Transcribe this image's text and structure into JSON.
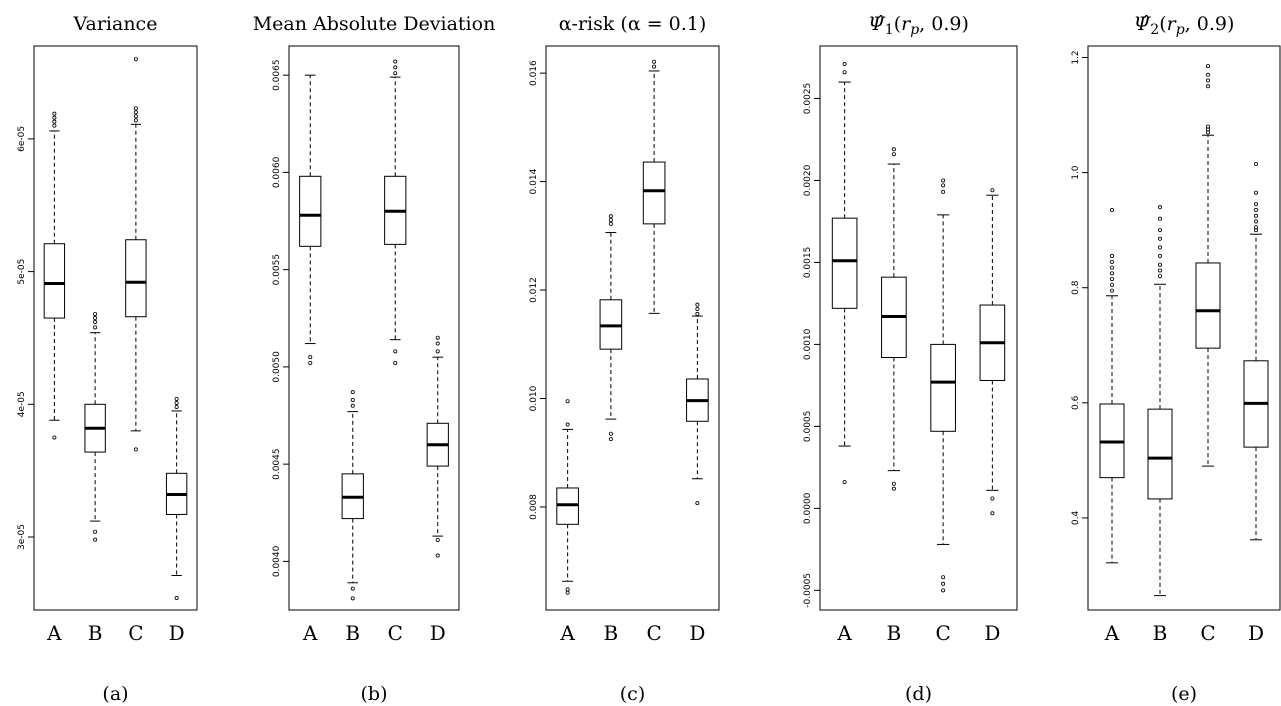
{
  "chart_data": [
    {
      "type": "boxplot",
      "title": "Variance",
      "caption": "(a)",
      "categories": [
        "A",
        "B",
        "C",
        "D"
      ],
      "ylim": [
        2.45e-05,
        6.7e-05
      ],
      "yticks": [
        3e-05,
        4e-05,
        5e-05,
        6e-05
      ],
      "ytick_labels": [
        "3e-05",
        "4e-05",
        "5e-05",
        "6e-05"
      ],
      "boxes": [
        {
          "lower_whisker": 3.88e-05,
          "q1": 4.65e-05,
          "median": 4.91e-05,
          "q3": 5.21e-05,
          "upper_whisker": 6.06e-05,
          "outliers": [
            3.75e-05,
            6.1e-05,
            6.13e-05,
            6.16e-05,
            6.19e-05
          ]
        },
        {
          "lower_whisker": 3.12e-05,
          "q1": 3.64e-05,
          "median": 3.82e-05,
          "q3": 4e-05,
          "upper_whisker": 4.54e-05,
          "outliers": [
            3.04e-05,
            2.98e-05,
            4.58e-05,
            4.62e-05,
            4.65e-05,
            4.68e-05
          ]
        },
        {
          "lower_whisker": 3.8e-05,
          "q1": 4.66e-05,
          "median": 4.92e-05,
          "q3": 5.24e-05,
          "upper_whisker": 6.11e-05,
          "outliers": [
            3.66e-05,
            6.14e-05,
            6.17e-05,
            6.2e-05,
            6.23e-05,
            6.6e-05
          ]
        },
        {
          "lower_whisker": 2.71e-05,
          "q1": 3.17e-05,
          "median": 3.32e-05,
          "q3": 3.48e-05,
          "upper_whisker": 3.95e-05,
          "outliers": [
            2.54e-05,
            3.98e-05,
            4.01e-05,
            4.04e-05
          ]
        }
      ]
    },
    {
      "type": "boxplot",
      "title": "Mean Absolute Deviation",
      "caption": "(b)",
      "categories": [
        "A",
        "B",
        "C",
        "D"
      ],
      "ylim": [
        0.00375,
        0.00665
      ],
      "yticks": [
        0.004,
        0.0045,
        0.005,
        0.0055,
        0.006,
        0.0065
      ],
      "ytick_labels": [
        "0.0040",
        "0.0045",
        "0.0050",
        "0.0055",
        "0.0060",
        "0.0065"
      ],
      "boxes": [
        {
          "lower_whisker": 0.00512,
          "q1": 0.00562,
          "median": 0.00578,
          "q3": 0.00598,
          "upper_whisker": 0.0065,
          "outliers": [
            0.00505,
            0.00502
          ]
        },
        {
          "lower_whisker": 0.00389,
          "q1": 0.00422,
          "median": 0.00433,
          "q3": 0.00445,
          "upper_whisker": 0.00477,
          "outliers": [
            0.00386,
            0.00381,
            0.0048,
            0.00483,
            0.00487
          ]
        },
        {
          "lower_whisker": 0.00514,
          "q1": 0.00563,
          "median": 0.0058,
          "q3": 0.00598,
          "upper_whisker": 0.00649,
          "outliers": [
            0.00508,
            0.00502,
            0.00651,
            0.00654,
            0.00657
          ]
        },
        {
          "lower_whisker": 0.00413,
          "q1": 0.00449,
          "median": 0.0046,
          "q3": 0.00471,
          "upper_whisker": 0.00505,
          "outliers": [
            0.00411,
            0.00403,
            0.00508,
            0.00512,
            0.00515
          ]
        }
      ]
    },
    {
      "type": "boxplot",
      "title": "α-risk (α = 0.1)",
      "caption": "(c)",
      "categories": [
        "A",
        "B",
        "C",
        "D"
      ],
      "ylim": [
        0.0061,
        0.0165
      ],
      "yticks": [
        0.008,
        0.01,
        0.012,
        0.014,
        0.016
      ],
      "ytick_labels": [
        "0.008",
        "0.010",
        "0.012",
        "0.014",
        "0.016"
      ],
      "boxes": [
        {
          "lower_whisker": 0.00663,
          "q1": 0.00768,
          "median": 0.00804,
          "q3": 0.00835,
          "upper_whisker": 0.00943,
          "outliers": [
            0.00648,
            0.00642,
            0.00952,
            0.00995
          ]
        },
        {
          "lower_whisker": 0.00962,
          "q1": 0.01091,
          "median": 0.01134,
          "q3": 0.01182,
          "upper_whisker": 0.01306,
          "outliers": [
            0.00935,
            0.00925,
            0.01322,
            0.01329,
            0.01336
          ]
        },
        {
          "lower_whisker": 0.01157,
          "q1": 0.01322,
          "median": 0.01383,
          "q3": 0.01436,
          "upper_whisker": 0.01604,
          "outliers": [
            0.01612,
            0.01621
          ]
        },
        {
          "lower_whisker": 0.00852,
          "q1": 0.00958,
          "median": 0.00996,
          "q3": 0.01036,
          "upper_whisker": 0.01152,
          "outliers": [
            0.00807,
            0.01156,
            0.01165,
            0.01173
          ]
        }
      ]
    },
    {
      "type": "boxplot",
      "title": "Ψ̂1(rp, 0.9)",
      "caption": "(d)",
      "categories": [
        "A",
        "B",
        "C",
        "D"
      ],
      "ylim": [
        -0.00062,
        0.00282
      ],
      "yticks": [
        -0.0005,
        0,
        0.0005,
        0.001,
        0.0015,
        0.002,
        0.0025
      ],
      "ytick_labels": [
        "-0.0005",
        "0.0000",
        "0.0005",
        "0.0010",
        "0.0015",
        "0.0020",
        "0.0025"
      ],
      "boxes": [
        {
          "lower_whisker": 0.00038,
          "q1": 0.00122,
          "median": 0.00151,
          "q3": 0.00177,
          "upper_whisker": 0.0026,
          "outliers": [
            0.00016,
            0.00266,
            0.00271
          ]
        },
        {
          "lower_whisker": 0.00023,
          "q1": 0.00092,
          "median": 0.00117,
          "q3": 0.00141,
          "upper_whisker": 0.0021,
          "outliers": [
            0.00015,
            0.00012,
            0.00216,
            0.00219
          ]
        },
        {
          "lower_whisker": -0.00022,
          "q1": 0.00047,
          "median": 0.00077,
          "q3": 0.001,
          "upper_whisker": 0.00179,
          "outliers": [
            -0.00042,
            -0.00046,
            -0.0005,
            0.00193,
            0.00197,
            0.002
          ]
        },
        {
          "lower_whisker": 0.00011,
          "q1": 0.00078,
          "median": 0.00101,
          "q3": 0.00124,
          "upper_whisker": 0.00191,
          "outliers": [
            6e-05,
            -3e-05,
            0.00194
          ]
        }
      ]
    },
    {
      "type": "boxplot",
      "title": "Ψ̂2(rp, 0.9)",
      "caption": "(e)",
      "categories": [
        "A",
        "B",
        "C",
        "D"
      ],
      "ylim": [
        0.24,
        1.22
      ],
      "yticks": [
        0.4,
        0.6,
        0.8,
        1.0,
        1.2
      ],
      "ytick_labels": [
        "0.4",
        "0.6",
        "0.8",
        "1.0",
        "1.2"
      ],
      "boxes": [
        {
          "lower_whisker": 0.322,
          "q1": 0.47,
          "median": 0.532,
          "q3": 0.598,
          "upper_whisker": 0.786,
          "outliers": [
            0.795,
            0.805,
            0.815,
            0.825,
            0.835,
            0.845,
            0.855,
            0.935
          ]
        },
        {
          "lower_whisker": 0.265,
          "q1": 0.433,
          "median": 0.504,
          "q3": 0.589,
          "upper_whisker": 0.806,
          "outliers": [
            0.82,
            0.83,
            0.84,
            0.855,
            0.87,
            0.885,
            0.9,
            0.92,
            0.94
          ]
        },
        {
          "lower_whisker": 0.49,
          "q1": 0.695,
          "median": 0.76,
          "q3": 0.843,
          "upper_whisker": 1.065,
          "outliers": [
            1.07,
            1.075,
            1.08,
            1.15,
            1.16,
            1.17,
            1.185
          ]
        },
        {
          "lower_whisker": 0.362,
          "q1": 0.523,
          "median": 0.599,
          "q3": 0.673,
          "upper_whisker": 0.893,
          "outliers": [
            0.9,
            0.905,
            0.915,
            0.925,
            0.935,
            0.945,
            0.965,
            1.015
          ]
        }
      ]
    }
  ]
}
